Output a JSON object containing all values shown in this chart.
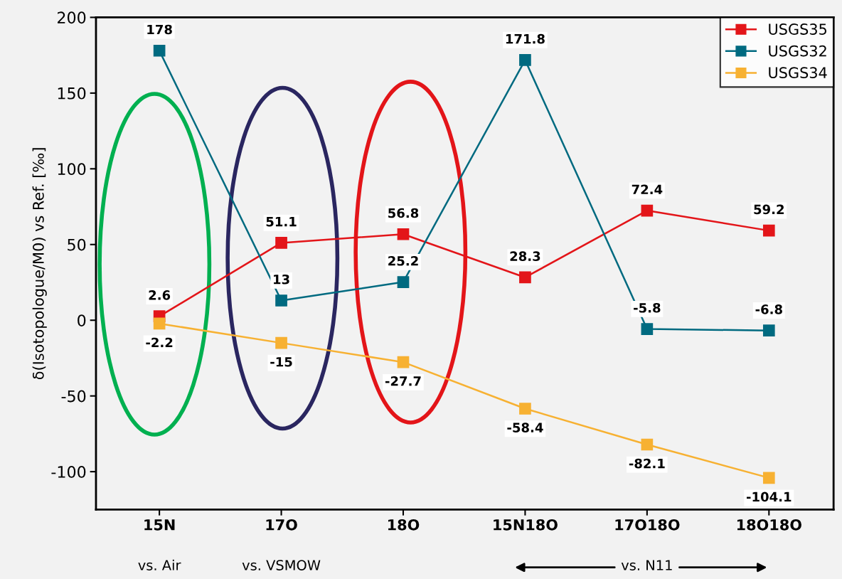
{
  "chart_data": {
    "type": "line",
    "ylabel": "δ(Isotopologue/M0) vs Ref. [‰]",
    "categories": [
      "15N",
      "17O",
      "18O",
      "15N18O",
      "17O18O",
      "18O18O"
    ],
    "series": [
      {
        "name": "USGS35",
        "color": "#e31519",
        "values": [
          2.6,
          51.1,
          56.8,
          28.3,
          72.4,
          59.2
        ]
      },
      {
        "name": "USGS32",
        "color": "#006a80",
        "values": [
          178,
          13,
          25.2,
          171.8,
          -5.8,
          -6.8
        ]
      },
      {
        "name": "USGS34",
        "color": "#f7b132",
        "values": [
          -2.2,
          -15,
          -27.7,
          -58.4,
          -82.1,
          -104.1
        ]
      }
    ],
    "ylim": [
      -125,
      200
    ],
    "yticks": [
      -100,
      -50,
      0,
      50,
      100,
      150,
      200
    ],
    "data_labels": true,
    "marker": "square",
    "legend": "top right",
    "grid": false,
    "annotations": [
      "vs. Air",
      "vs. VSMOW",
      "vs. N11"
    ]
  }
}
